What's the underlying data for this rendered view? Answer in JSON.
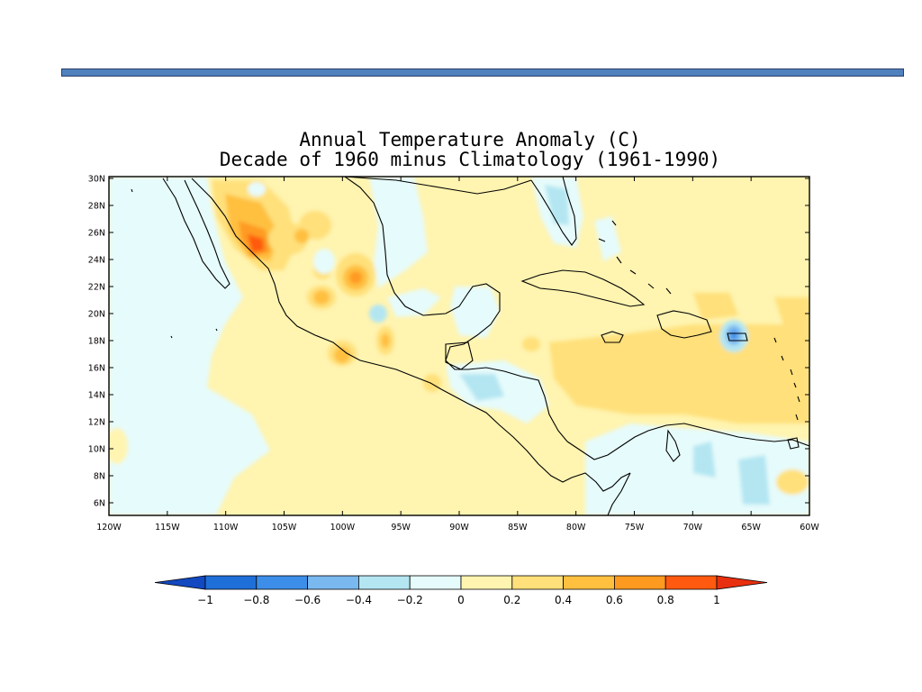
{
  "title_line1": "Annual Temperature Anomaly (C)",
  "title_line2": "Decade of 1960 minus Climatology (1961-1990)",
  "accent_bar_color": "#4f81bd",
  "lon_labels": [
    "120W",
    "115W",
    "110W",
    "105W",
    "100W",
    "95W",
    "90W",
    "85W",
    "80W",
    "75W",
    "70W",
    "65W",
    "60W"
  ],
  "lat_labels": [
    "30N",
    "28N",
    "26N",
    "24N",
    "22N",
    "20N",
    "18N",
    "16N",
    "14N",
    "12N",
    "10N",
    "8N",
    "6N"
  ],
  "colorbar": {
    "ticks": [
      "-1",
      "-0.8",
      "-0.6",
      "-0.4",
      "-0.2",
      "0",
      "0.2",
      "0.4",
      "0.6",
      "0.8",
      "1"
    ],
    "colors": [
      "#1f6fd8",
      "#3d8ee8",
      "#7ab8f0",
      "#b4e6f2",
      "#e6fbfb",
      "#fff4b0",
      "#ffe07a",
      "#ffc040",
      "#ff9a20",
      "#ff5a10"
    ],
    "under_color": "#1248c0",
    "over_color": "#e83010"
  },
  "background_field_color": "#fff4b0",
  "neutral_cool_color": "#e6fbfb"
}
